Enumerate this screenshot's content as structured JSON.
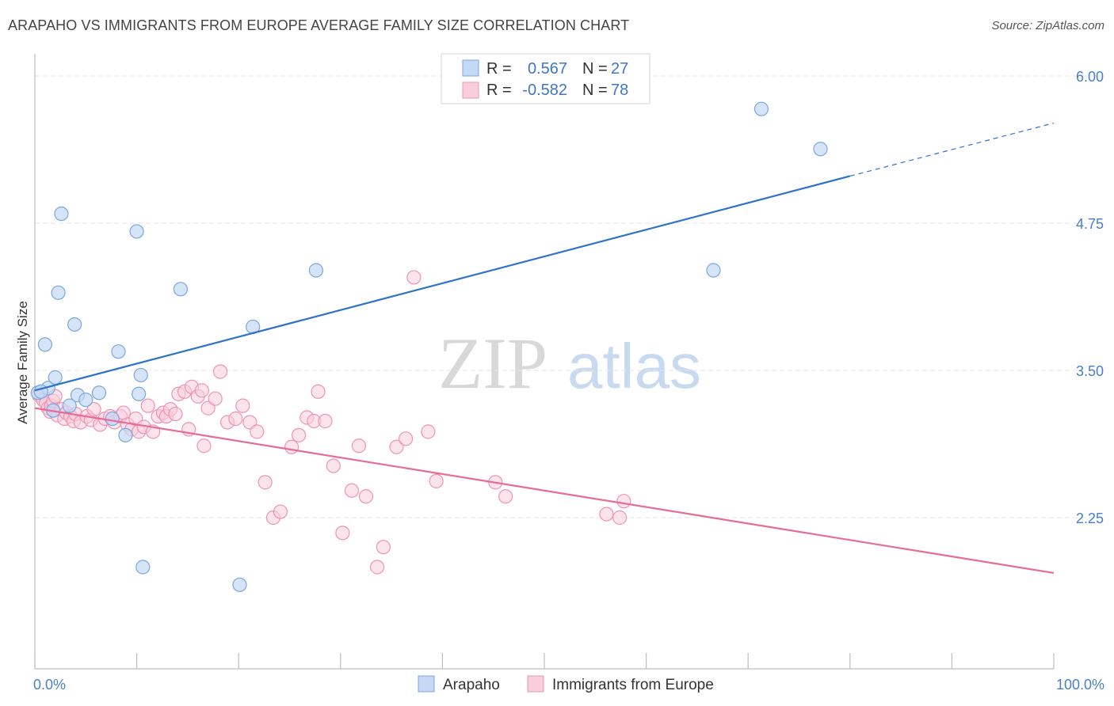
{
  "title": "ARAPAHO VS IMMIGRANTS FROM EUROPE AVERAGE FAMILY SIZE CORRELATION CHART",
  "source": "Source: ZipAtlas.com",
  "watermark": {
    "zip": "ZIP",
    "atlas": "atlas"
  },
  "colors": {
    "arapaho_fill": "#c5d9f5",
    "arapaho_stroke": "#7aa6e0",
    "arapaho_line": "#2e72cc",
    "europe_fill": "#f9cedc",
    "europe_stroke": "#ee94b2",
    "europe_line": "#e66c98",
    "tick_text": "#4a7fc8",
    "grid": "#e6e6e6"
  },
  "legend": {
    "rows": [
      {
        "r_label": "R =",
        "r_value": "0.567",
        "n_label": "N =",
        "n_value": "27"
      },
      {
        "r_label": "R =",
        "r_value": "-0.582",
        "n_label": "N =",
        "n_value": "78"
      }
    ]
  },
  "chart_data": {
    "type": "scatter",
    "title": "ARAPAHO VS IMMIGRANTS FROM EUROPE AVERAGE FAMILY SIZE CORRELATION CHART",
    "xlabel": "",
    "ylabel": "Average Family Size",
    "xlim": [
      0,
      100
    ],
    "ylim": [
      1.25,
      6.1
    ],
    "x_tick_labels": [
      "0.0%",
      "100.0%"
    ],
    "y_ticks": [
      2.25,
      3.5,
      4.75,
      6.0
    ],
    "y_tick_labels": [
      "2.25",
      "3.50",
      "4.75",
      "6.00"
    ],
    "grid": true,
    "legend_position": "bottom",
    "series": [
      {
        "name": "Arapaho",
        "points": [
          [
            0.3,
            3.31
          ],
          [
            1.0,
            3.72
          ],
          [
            1.3,
            3.35
          ],
          [
            1.8,
            3.16
          ],
          [
            2.0,
            3.44
          ],
          [
            2.3,
            4.16
          ],
          [
            2.6,
            4.83
          ],
          [
            3.4,
            3.2
          ],
          [
            3.9,
            3.89
          ],
          [
            4.2,
            3.29
          ],
          [
            5.0,
            3.25
          ],
          [
            6.3,
            3.31
          ],
          [
            7.6,
            3.09
          ],
          [
            8.2,
            3.66
          ],
          [
            8.9,
            2.95
          ],
          [
            10.0,
            4.68
          ],
          [
            10.2,
            3.3
          ],
          [
            10.4,
            3.46
          ],
          [
            10.6,
            1.83
          ],
          [
            14.3,
            4.19
          ],
          [
            20.1,
            1.68
          ],
          [
            21.4,
            3.87
          ],
          [
            27.6,
            4.35
          ],
          [
            66.6,
            4.35
          ],
          [
            71.3,
            5.72
          ],
          [
            77.1,
            5.38
          ],
          [
            0.6,
            3.32
          ]
        ],
        "trend": {
          "x": [
            0,
            80,
            100
          ],
          "y": [
            3.33,
            5.15,
            5.6
          ],
          "solid_until_x": 80
        }
      },
      {
        "name": "Immigrants from Europe",
        "points": [
          [
            0.4,
            3.29
          ],
          [
            0.8,
            3.25
          ],
          [
            1.1,
            3.22
          ],
          [
            1.3,
            3.18
          ],
          [
            1.5,
            3.15
          ],
          [
            1.6,
            3.2
          ],
          [
            1.8,
            3.24
          ],
          [
            2.0,
            3.28
          ],
          [
            2.2,
            3.12
          ],
          [
            2.6,
            3.17
          ],
          [
            2.9,
            3.09
          ],
          [
            3.1,
            3.14
          ],
          [
            3.5,
            3.11
          ],
          [
            3.8,
            3.07
          ],
          [
            4.0,
            3.13
          ],
          [
            4.5,
            3.06
          ],
          [
            5.1,
            3.11
          ],
          [
            5.5,
            3.08
          ],
          [
            5.8,
            3.17
          ],
          [
            6.4,
            3.04
          ],
          [
            6.9,
            3.09
          ],
          [
            7.4,
            3.11
          ],
          [
            7.8,
            3.06
          ],
          [
            8.4,
            3.11
          ],
          [
            8.7,
            3.14
          ],
          [
            9.1,
            3.04
          ],
          [
            9.5,
            3.0
          ],
          [
            9.9,
            3.09
          ],
          [
            10.2,
            2.98
          ],
          [
            10.7,
            3.02
          ],
          [
            11.1,
            3.2
          ],
          [
            11.6,
            2.98
          ],
          [
            12.1,
            3.11
          ],
          [
            12.6,
            3.14
          ],
          [
            12.9,
            3.11
          ],
          [
            13.3,
            3.17
          ],
          [
            13.8,
            3.13
          ],
          [
            14.1,
            3.3
          ],
          [
            14.7,
            3.32
          ],
          [
            15.1,
            3.0
          ],
          [
            15.4,
            3.36
          ],
          [
            16.0,
            3.28
          ],
          [
            16.4,
            3.33
          ],
          [
            16.6,
            2.86
          ],
          [
            17.0,
            3.18
          ],
          [
            17.7,
            3.26
          ],
          [
            18.2,
            3.49
          ],
          [
            18.9,
            3.06
          ],
          [
            19.7,
            3.09
          ],
          [
            20.4,
            3.2
          ],
          [
            21.1,
            3.06
          ],
          [
            21.8,
            2.98
          ],
          [
            22.6,
            2.55
          ],
          [
            23.4,
            2.25
          ],
          [
            24.1,
            2.3
          ],
          [
            25.2,
            2.85
          ],
          [
            25.9,
            2.95
          ],
          [
            26.7,
            3.1
          ],
          [
            27.4,
            3.07
          ],
          [
            27.8,
            3.32
          ],
          [
            28.5,
            3.07
          ],
          [
            29.3,
            2.69
          ],
          [
            30.2,
            2.12
          ],
          [
            31.1,
            2.48
          ],
          [
            31.8,
            2.86
          ],
          [
            32.5,
            2.43
          ],
          [
            33.6,
            1.83
          ],
          [
            34.2,
            2.0
          ],
          [
            35.5,
            2.85
          ],
          [
            36.4,
            2.92
          ],
          [
            37.2,
            4.29
          ],
          [
            38.6,
            2.98
          ],
          [
            39.4,
            2.56
          ],
          [
            45.2,
            2.55
          ],
          [
            46.2,
            2.43
          ],
          [
            56.1,
            2.28
          ],
          [
            57.4,
            2.25
          ],
          [
            57.8,
            2.39
          ]
        ],
        "trend": {
          "x": [
            0,
            100
          ],
          "y": [
            3.18,
            1.78
          ]
        }
      }
    ]
  },
  "bottom_legend": {
    "arapaho": "Arapaho",
    "europe": "Immigrants from Europe"
  }
}
